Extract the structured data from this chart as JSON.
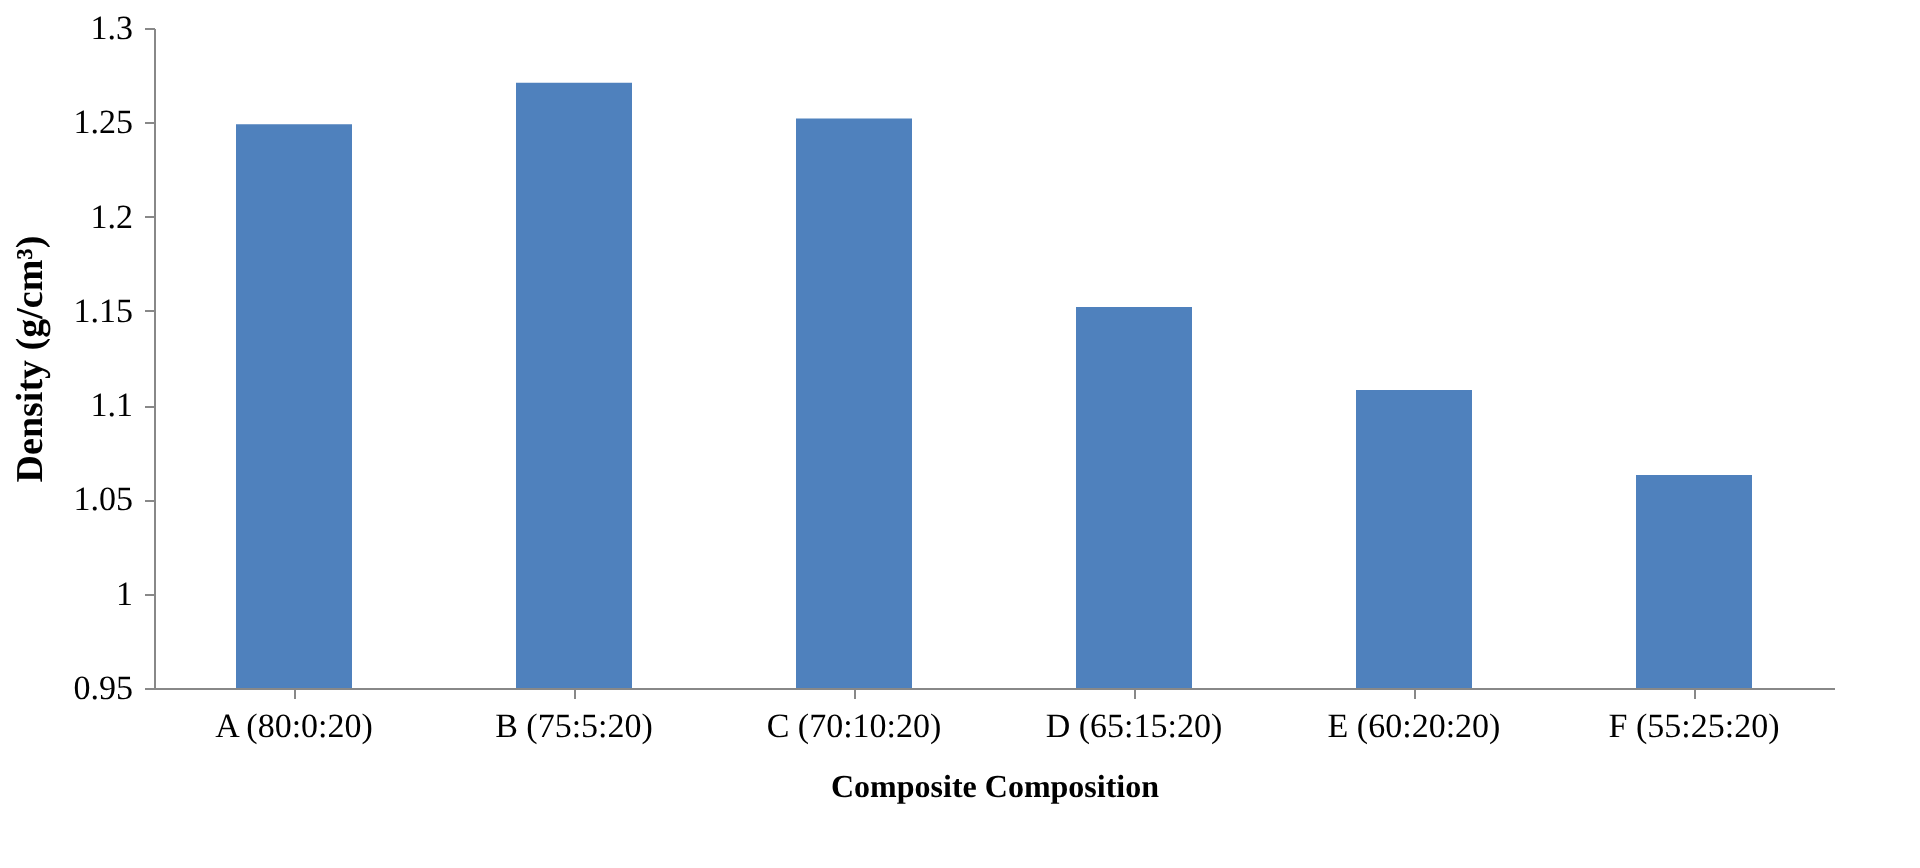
{
  "chart_data": {
    "type": "bar",
    "xlabel": "Composite Composition",
    "ylabel": "Density (g/cm³)",
    "categories": [
      "A (80:0:20)",
      "B (75:5:20)",
      "C (70:10:20)",
      "D (65:15:20)",
      "E (60:20:20)",
      "F (55:25:20)"
    ],
    "series": [
      {
        "color": "#4f81bd",
        "values": [
          1.249,
          1.271,
          1.252,
          1.152,
          1.108,
          1.063
        ]
      }
    ],
    "ylim": [
      0.95,
      1.3
    ],
    "yticks": [
      0.95,
      1,
      1.05,
      1.1,
      1.15,
      1.2,
      1.25,
      1.3
    ],
    "grid": false
  }
}
